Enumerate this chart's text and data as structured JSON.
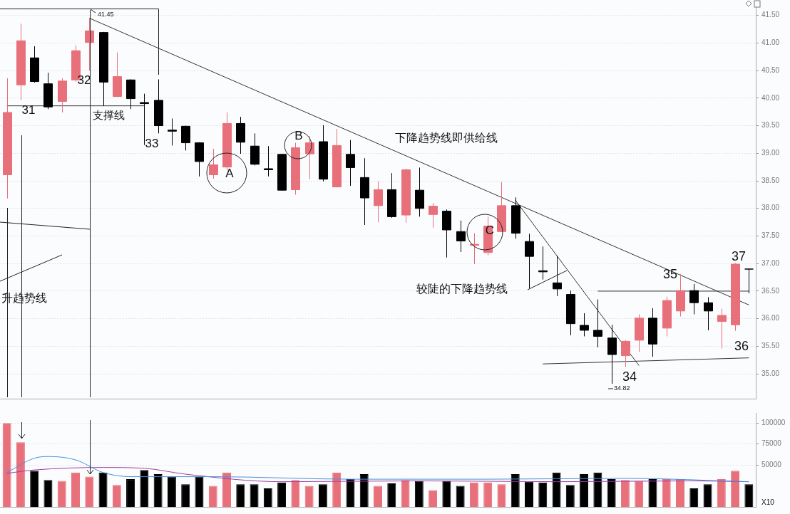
{
  "chart_data": [
    {
      "type": "candlestick",
      "categories": [
        null,
        null,
        null,
        null,
        null,
        null,
        null,
        null,
        null,
        null,
        null,
        null,
        null,
        null,
        null,
        null,
        null,
        null,
        null,
        null,
        null,
        null,
        null,
        null,
        null,
        null,
        null,
        null,
        null,
        null,
        null,
        null,
        null,
        null,
        null,
        null,
        null,
        null,
        null,
        null,
        null,
        null,
        null,
        null,
        null,
        null,
        null,
        null,
        null,
        null,
        null,
        null,
        null,
        null,
        null
      ],
      "ohlc": [
        [
          38.61,
          40.36,
          38.18,
          39.74
        ],
        [
          40.24,
          41.35,
          39.96,
          41.04
        ],
        [
          40.73,
          40.94,
          40.28,
          40.3
        ],
        [
          40.26,
          40.46,
          39.8,
          39.84
        ],
        [
          39.94,
          40.36,
          39.74,
          40.31
        ],
        [
          40.33,
          40.96,
          40.3,
          40.86
        ],
        [
          41.01,
          41.45,
          40.5,
          41.22
        ],
        [
          41.19,
          41.2,
          39.86,
          40.29
        ],
        [
          40.03,
          40.83,
          40.02,
          40.39
        ],
        [
          40.33,
          40.34,
          39.8,
          39.99
        ],
        [
          39.92,
          40.08,
          39.15,
          39.9
        ],
        [
          39.96,
          40.34,
          39.36,
          39.5
        ],
        [
          39.42,
          39.63,
          39.14,
          39.4
        ],
        [
          39.49,
          39.5,
          39.05,
          39.19
        ],
        [
          39.19,
          39.2,
          38.58,
          38.85
        ],
        [
          38.61,
          39.08,
          38.54,
          38.79
        ],
        [
          38.75,
          39.74,
          38.69,
          39.54
        ],
        [
          39.54,
          39.66,
          38.99,
          39.2
        ],
        [
          39.13,
          39.36,
          38.78,
          38.8
        ],
        [
          38.72,
          39.13,
          38.58,
          38.7
        ],
        [
          38.98,
          38.99,
          38.32,
          38.33
        ],
        [
          38.34,
          39.19,
          38.25,
          39.1
        ],
        [
          38.99,
          39.31,
          38.53,
          39.19
        ],
        [
          39.21,
          39.51,
          38.49,
          38.53
        ],
        [
          38.39,
          39.44,
          38.38,
          39.14
        ],
        [
          38.98,
          39.24,
          38.41,
          38.74
        ],
        [
          38.56,
          38.91,
          37.7,
          38.19
        ],
        [
          38.05,
          38.49,
          37.75,
          38.34
        ],
        [
          38.34,
          38.64,
          37.83,
          37.85
        ],
        [
          37.88,
          38.72,
          37.74,
          38.7
        ],
        [
          38.33,
          38.74,
          37.85,
          38.0
        ],
        [
          37.89,
          38.1,
          37.65,
          38.04
        ],
        [
          37.95,
          37.98,
          37.11,
          37.61
        ],
        [
          37.58,
          37.78,
          37.21,
          37.41
        ],
        [
          37.33,
          37.55,
          36.99,
          37.35
        ],
        [
          37.2,
          37.85,
          37.15,
          37.68
        ],
        [
          37.58,
          38.48,
          37.57,
          38.05
        ],
        [
          38.05,
          38.2,
          37.45,
          37.55
        ],
        [
          37.4,
          37.54,
          36.55,
          37.13
        ],
        [
          36.87,
          37.31,
          36.71,
          36.85
        ],
        [
          36.65,
          37.14,
          36.41,
          36.54
        ],
        [
          36.44,
          36.51,
          35.7,
          35.91
        ],
        [
          35.88,
          36.1,
          35.68,
          35.79
        ],
        [
          35.79,
          36.35,
          35.48,
          35.68
        ],
        [
          35.65,
          35.89,
          34.82,
          35.35
        ],
        [
          35.33,
          35.61,
          35.13,
          35.59
        ],
        [
          35.61,
          36.08,
          35.4,
          36.01
        ],
        [
          36.01,
          36.19,
          35.31,
          35.54
        ],
        [
          35.83,
          36.4,
          35.68,
          36.33
        ],
        [
          36.14,
          36.81,
          36.04,
          36.51
        ],
        [
          36.51,
          36.63,
          36.08,
          36.29
        ],
        [
          36.29,
          36.39,
          35.79,
          36.14
        ],
        [
          35.95,
          36.18,
          35.46,
          36.06
        ],
        [
          35.89,
          37.01,
          35.78,
          36.99
        ],
        [
          36.9,
          36.91,
          36.46,
          36.89
        ]
      ],
      "colors": [
        "#e8707a",
        "#e8707a",
        "#000000",
        "#000000",
        "#e8707a",
        "#e8707a",
        "#e8707a",
        "#000000",
        "#e8707a",
        "#000000",
        "#000000",
        "#000000",
        "#000000",
        "#000000",
        "#000000",
        "#e8707a",
        "#e8707a",
        "#000000",
        "#000000",
        "#000000",
        "#000000",
        "#e8707a",
        "#e8707a",
        "#000000",
        "#e8707a",
        "#000000",
        "#000000",
        "#e8707a",
        "#000000",
        "#e8707a",
        "#000000",
        "#e8707a",
        "#000000",
        "#000000",
        "#e8707a",
        "#e8707a",
        "#e8707a",
        "#000000",
        "#000000",
        "#000000",
        "#000000",
        "#000000",
        "#000000",
        "#000000",
        "#000000",
        "#e8707a",
        "#e8707a",
        "#000000",
        "#e8707a",
        "#e8707a",
        "#000000",
        "#000000",
        "#e8707a",
        "#e8707a",
        "#000000"
      ],
      "series": [
        {
          "type": "line",
          "color": "#333333",
          "values": [
            null,
            null,
            null,
            null,
            null,
            null,
            41.45,
            null,
            null,
            null,
            null,
            null,
            null,
            null,
            null,
            null,
            null,
            null,
            null,
            null,
            null,
            null,
            null,
            null,
            null,
            null,
            null,
            null,
            null,
            null,
            null,
            null,
            null,
            null,
            null,
            null,
            null,
            null,
            null,
            null,
            null,
            null,
            null,
            null,
            null,
            null,
            null,
            null,
            null,
            null,
            null,
            null,
            null,
            null,
            36.25
          ]
        },
        {
          "type": "line",
          "color": "#333333",
          "values": [
            null,
            null,
            null,
            null,
            null,
            null,
            null,
            null,
            null,
            null,
            null,
            null,
            null,
            null,
            null,
            null,
            null,
            null,
            null,
            null,
            null,
            null,
            null,
            null,
            null,
            null,
            null,
            null,
            null,
            null,
            null,
            null,
            null,
            null,
            null,
            null,
            null,
            38.15,
            null,
            null,
            null,
            null,
            null,
            null,
            null,
            null,
            35.15,
            null,
            null,
            null,
            null,
            null,
            null,
            null,
            null
          ]
        },
        {
          "type": "line",
          "color": "#333333",
          "values": [
            39.86,
            null,
            null,
            null,
            null,
            null,
            null,
            null,
            null,
            null,
            39.86,
            null,
            null,
            null,
            null,
            null,
            null,
            null,
            null,
            null,
            null,
            null,
            null,
            null,
            null,
            null,
            null,
            null,
            null,
            null,
            null,
            null,
            null,
            null,
            null,
            null,
            null,
            null,
            null,
            null,
            null,
            null,
            null,
            null,
            null,
            null,
            null,
            null,
            null,
            null,
            null,
            null,
            null,
            null,
            null
          ]
        },
        {
          "type": "line",
          "color": "#333333",
          "values": [
            null,
            null,
            null,
            null,
            null,
            null,
            null,
            null,
            null,
            null,
            null,
            null,
            null,
            null,
            null,
            null,
            null,
            null,
            null,
            null,
            null,
            null,
            null,
            null,
            null,
            null,
            null,
            null,
            null,
            null,
            null,
            null,
            null,
            null,
            null,
            null,
            null,
            null,
            null,
            null,
            null,
            null,
            null,
            36.5,
            null,
            null,
            null,
            null,
            null,
            null,
            null,
            null,
            null,
            null,
            36.5
          ]
        },
        {
          "type": "line",
          "color": "#333333",
          "values": [
            null,
            null,
            null,
            null,
            null,
            null,
            null,
            null,
            null,
            null,
            null,
            null,
            null,
            null,
            null,
            null,
            null,
            null,
            null,
            null,
            null,
            null,
            null,
            null,
            null,
            null,
            null,
            null,
            null,
            null,
            null,
            null,
            null,
            null,
            null,
            null,
            null,
            null,
            null,
            35.18,
            null,
            null,
            null,
            null,
            null,
            null,
            null,
            null,
            null,
            null,
            null,
            null,
            null,
            null,
            35.29
          ]
        }
      ],
      "ylim": [
        34.55,
        41.65
      ],
      "yticks": [
        {
          "value": 35,
          "label": "35.00"
        },
        {
          "value": 35.5,
          "label": "35.50"
        },
        {
          "value": 36,
          "label": "36.00"
        },
        {
          "value": 36.5,
          "label": "36.50"
        },
        {
          "value": 37,
          "label": "37.00"
        },
        {
          "value": 37.5,
          "label": "37.50"
        },
        {
          "value": 38,
          "label": "38.00"
        },
        {
          "value": 38.5,
          "label": "38.50"
        },
        {
          "value": 39,
          "label": "39.00"
        },
        {
          "value": 39.5,
          "label": "39.50"
        },
        {
          "value": 40,
          "label": "40.00"
        },
        {
          "value": 40.5,
          "label": "40.50"
        },
        {
          "value": 41,
          "label": "41.00"
        },
        {
          "value": 41.5,
          "label": "41.50"
        }
      ],
      "grid": "y",
      "tick_labels": "y",
      "annotations": [
        "31",
        "32",
        "33",
        "支撑线",
        "A",
        "B",
        "C",
        "下降趋势线即供给线",
        "较陡的下降趋势线",
        "升趋势线",
        "34",
        "35",
        "36",
        "37",
        "41.45",
        "34.82"
      ]
    },
    {
      "type": "bar",
      "categories": [
        null,
        null,
        null,
        null,
        null,
        null,
        null,
        null,
        null,
        null,
        null,
        null,
        null,
        null,
        null,
        null,
        null,
        null,
        null,
        null,
        null,
        null,
        null,
        null,
        null,
        null,
        null,
        null,
        null,
        null,
        null,
        null,
        null,
        null,
        null,
        null,
        null,
        null,
        null,
        null,
        null,
        null,
        null,
        null,
        null,
        null,
        null,
        null,
        null,
        null,
        null,
        null,
        null,
        null,
        null
      ],
      "series": [
        {
          "type": "bar",
          "colors": [
            "#e8707a",
            "#e8707a",
            "#000000",
            "#000000",
            "#e8707a",
            "#e8707a",
            "#e8707a",
            "#000000",
            "#e8707a",
            "#000000",
            "#000000",
            "#000000",
            "#000000",
            "#000000",
            "#000000",
            "#e8707a",
            "#e8707a",
            "#000000",
            "#000000",
            "#000000",
            "#000000",
            "#e8707a",
            "#e8707a",
            "#000000",
            "#e8707a",
            "#000000",
            "#000000",
            "#e8707a",
            "#000000",
            "#e8707a",
            "#000000",
            "#e8707a",
            "#000000",
            "#000000",
            "#e8707a",
            "#e8707a",
            "#e8707a",
            "#000000",
            "#000000",
            "#000000",
            "#000000",
            "#000000",
            "#000000",
            "#000000",
            "#000000",
            "#e8707a",
            "#e8707a",
            "#000000",
            "#e8707a",
            "#e8707a",
            "#000000",
            "#000000",
            "#e8707a",
            "#e8707a",
            "#000000"
          ],
          "values": [
            100000,
            77000,
            43000,
            32000,
            31000,
            41000,
            36000,
            41000,
            26000,
            33000,
            44000,
            39000,
            36000,
            27000,
            36000,
            25000,
            41000,
            27000,
            27000,
            22000,
            29000,
            32000,
            25000,
            27000,
            41000,
            33000,
            39000,
            25000,
            28000,
            32000,
            31000,
            20000,
            31000,
            25000,
            29000,
            29000,
            27000,
            39000,
            30000,
            29000,
            41000,
            26000,
            39000,
            41000,
            33000,
            32000,
            31000,
            33000,
            33000,
            33000,
            22000,
            27000,
            33000,
            43000,
            27000
          ]
        },
        {
          "type": "line",
          "color": "#4a90d9",
          "values": [
            41000,
            null,
            58000,
            60000,
            null,
            56000,
            null,
            41000,
            null,
            36000,
            null,
            null,
            null,
            null,
            null,
            36000,
            null,
            null,
            null,
            null,
            null,
            null,
            null,
            null,
            null,
            33000,
            null,
            null,
            null,
            null,
            null,
            null,
            null,
            null,
            null,
            33000,
            null,
            null,
            null,
            null,
            null,
            null,
            null,
            null,
            null,
            34000,
            null,
            null,
            null,
            null,
            null,
            null,
            null,
            null,
            30000
          ]
        },
        {
          "type": "line",
          "color": "#a040a0",
          "values": [
            40000,
            null,
            44000,
            null,
            null,
            null,
            null,
            47000,
            null,
            null,
            46000,
            null,
            null,
            39000,
            null,
            null,
            null,
            null,
            null,
            null,
            30000,
            null,
            null,
            null,
            null,
            null,
            null,
            null,
            null,
            null,
            31000,
            null,
            null,
            null,
            null,
            null,
            null,
            null,
            null,
            null,
            30000,
            null,
            null,
            null,
            null,
            null,
            null,
            null,
            null,
            null,
            31000,
            null,
            null,
            null,
            30000
          ]
        }
      ],
      "ylim": [
        0,
        112000
      ],
      "yticks": [
        50000,
        75000,
        100000
      ],
      "grid": "y",
      "tick_labels": "y",
      "annotations": [
        "X10"
      ]
    }
  ]
}
